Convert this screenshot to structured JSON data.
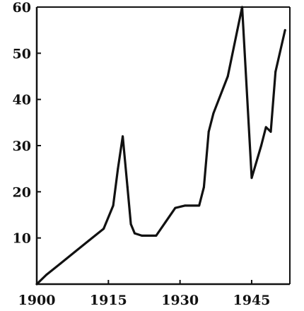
{
  "chart_data": {
    "type": "line",
    "title": "",
    "xlabel": "",
    "ylabel": "",
    "xlim": [
      1900,
      1953
    ],
    "ylim": [
      0,
      60
    ],
    "grid": false,
    "legend": "none",
    "x_ticks": [
      "1900",
      "1915",
      "1930",
      "1945"
    ],
    "x_tick_values": [
      1900,
      1915,
      1930,
      1945
    ],
    "y_ticks": [
      "10",
      "20",
      "30",
      "40",
      "50",
      "60"
    ],
    "y_tick_values": [
      10,
      20,
      30,
      40,
      50,
      60
    ],
    "series": [
      {
        "x": [
          1900,
          1902,
          1905,
          1908,
          1911,
          1914,
          1916,
          1917,
          1918,
          1919,
          1919.7,
          1920.5,
          1922,
          1925,
          1927,
          1929,
          1931,
          1934,
          1935,
          1936,
          1937,
          1940,
          1942,
          1943,
          1945,
          1947,
          1948,
          1949,
          1950,
          1952
        ],
        "y": [
          0,
          2,
          4.5,
          7,
          9.5,
          12,
          17,
          25,
          32,
          21,
          13,
          11,
          10.5,
          10.5,
          13.5,
          16.5,
          17,
          17,
          21,
          33,
          37,
          45,
          55,
          60,
          23,
          30,
          34,
          33,
          46,
          55
        ]
      }
    ],
    "colors": {
      "line": "#111111",
      "axis": "#111111"
    }
  }
}
